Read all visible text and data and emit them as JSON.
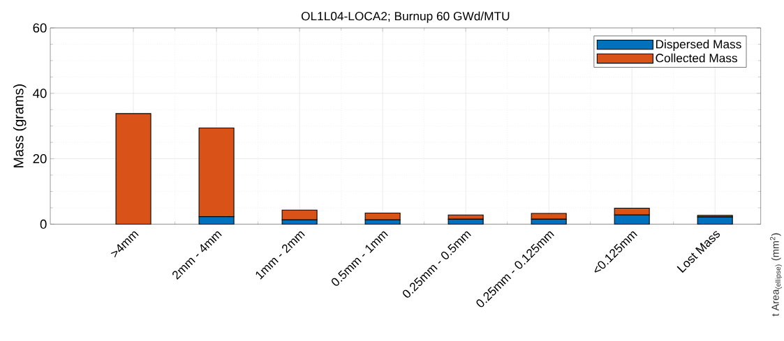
{
  "chart_data": {
    "type": "bar",
    "title": "OL1L04-LOCA2; Burnup 60 GWd/MTU",
    "ylabel": "Mass (grams)",
    "categories": [
      ">4mm",
      "2mm - 4mm",
      "1mm - 2mm",
      "0.5mm - 1mm",
      "0.25mm - 0.5mm",
      "0.25mm - 0.125mm",
      "<0.125mm",
      "Lost Mass"
    ],
    "series": [
      {
        "name": "Dispersed Mass",
        "color": "#0072bd",
        "values": [
          0,
          2.3,
          1.3,
          1.3,
          1.5,
          1.5,
          2.8,
          2.2
        ]
      },
      {
        "name": "Collected Mass",
        "color": "#d95319",
        "values": [
          33.8,
          27.1,
          3.0,
          2.1,
          1.3,
          1.8,
          2.1,
          0.5
        ]
      }
    ],
    "stacked": true,
    "ylim": [
      0,
      60
    ],
    "yticks": [
      0,
      20,
      40,
      60
    ],
    "grid": true,
    "legend": "top right",
    "annotations": [
      "t Area$_{(ellipse)}$ (mm$^{2}$)"
    ]
  }
}
